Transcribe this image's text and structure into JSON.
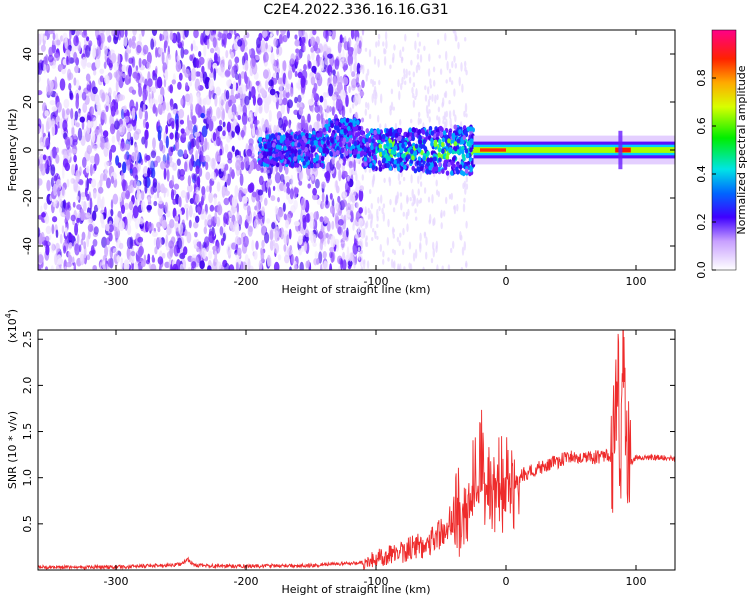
{
  "title": "C2E4.2022.336.16.16.G31",
  "chart_data": [
    {
      "type": "heatmap",
      "xlabel": "Height of straight line (km)",
      "ylabel": "Frequency (Hz)",
      "xlim": [
        -360,
        130
      ],
      "ylim": [
        -50,
        50
      ],
      "xticks": [
        -300,
        -200,
        -100,
        0,
        100
      ],
      "yticks": [
        -40,
        -20,
        0,
        20,
        40
      ],
      "colorbar": {
        "label": "Normalized spectral amplitude",
        "range": [
          0,
          1
        ],
        "ticks": [
          "0.0",
          "0.2",
          "0.4",
          "0.6",
          "0.8"
        ]
      },
      "features": {
        "noise_region_x": [
          -360,
          -110
        ],
        "carrier_start_x": -25,
        "carrier_frequency_hz": 0,
        "carrier_halfwidth_hz": 3,
        "bright_peak_x": 88,
        "strong_band_x": [
          -190,
          -25
        ]
      }
    },
    {
      "type": "line",
      "xlabel": "Height of straight line (km)",
      "ylabel": "SNR (10 * v/v)",
      "y_multiplier_label": "(x10^4)",
      "xlim": [
        -360,
        130
      ],
      "ylim": [
        0,
        2.6
      ],
      "xticks": [
        -300,
        -200,
        -100,
        0,
        100
      ],
      "yticks": [
        0.5,
        1.0,
        1.5,
        2.0,
        2.5
      ],
      "color": "#ee2b2b",
      "series": [
        {
          "x": [
            -360,
            -300,
            -250,
            -245,
            -240,
            -200,
            -150,
            -110,
            -100,
            -80,
            -60,
            -45,
            -35,
            -28,
            -22,
            -18,
            -15,
            -10,
            -5,
            0,
            10,
            20,
            30,
            40,
            50,
            60,
            70,
            80,
            84,
            86,
            88,
            90,
            92,
            95,
            100,
            110,
            120,
            130
          ],
          "y": [
            0.03,
            0.03,
            0.06,
            0.12,
            0.05,
            0.04,
            0.05,
            0.08,
            0.12,
            0.2,
            0.3,
            0.45,
            0.75,
            0.9,
            1.05,
            1.4,
            0.85,
            0.95,
            1.0,
            1.05,
            1.02,
            1.08,
            1.12,
            1.18,
            1.22,
            1.22,
            1.22,
            1.25,
            1.35,
            2.4,
            0.5,
            2.6,
            1.6,
            1.15,
            1.22,
            1.22,
            1.22,
            1.2
          ]
        }
      ]
    }
  ],
  "labels": {
    "top_ylabel": "Frequency (Hz)",
    "top_xlabel": "Height of straight line (km)",
    "bottom_ylabel": "SNR (10 * v/v)",
    "bottom_xlabel": "Height of straight line (km)",
    "exp_label": "(x10",
    "exp_power": "4",
    "exp_close": ")",
    "colorbar_label": "Normalized spectral amplitude"
  }
}
